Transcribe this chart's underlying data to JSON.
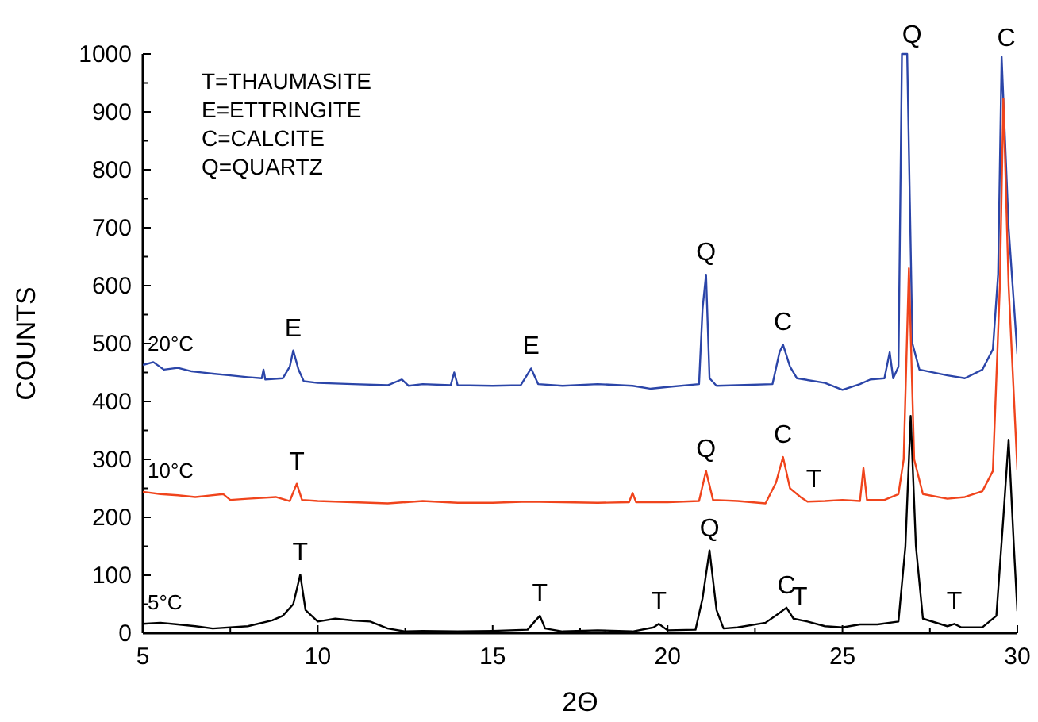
{
  "chart_data": {
    "type": "line",
    "xlabel": "2Θ",
    "ylabel": "COUNTS",
    "xlim": [
      5,
      30
    ],
    "ylim": [
      0,
      1000
    ],
    "xticks": [
      5,
      {
        "value": 7.5,
        "label": null
      },
      10,
      {
        "value": 12.5,
        "label": null
      },
      15,
      {
        "value": 17.5,
        "label": null
      },
      20,
      {
        "value": 22.5,
        "label": null
      },
      25,
      {
        "value": 27.5,
        "label": null
      },
      30
    ],
    "yticks": [
      0,
      {
        "value": 50,
        "label": null
      },
      100,
      {
        "value": 150,
        "label": null
      },
      200,
      {
        "value": 250,
        "label": null
      },
      300,
      {
        "value": 350,
        "label": null
      },
      400,
      {
        "value": 450,
        "label": null
      },
      500,
      {
        "value": 550,
        "label": null
      },
      600,
      {
        "value": 650,
        "label": null
      },
      700,
      {
        "value": 750,
        "label": null
      },
      800,
      {
        "value": 850,
        "label": null
      },
      900,
      {
        "value": 950,
        "label": null
      },
      1000
    ],
    "grid": false,
    "legend": false,
    "marker": "none",
    "line_style": "solid",
    "series": [
      {
        "name": "20°C",
        "color": "#2b45a8",
        "x": [
          5,
          5.3,
          5.6,
          6,
          6.4,
          7,
          7.5,
          8,
          8.4,
          8.45,
          8.5,
          9.0,
          9.2,
          9.3,
          9.45,
          9.6,
          10,
          11,
          12,
          12.4,
          12.6,
          13,
          13.8,
          13.9,
          14,
          15,
          15.8,
          16.1,
          16.3,
          17,
          18,
          19,
          19.5,
          20,
          20.9,
          21.0,
          21.1,
          21.2,
          21.4,
          22,
          23,
          23.2,
          23.3,
          23.5,
          23.7,
          24.5,
          25,
          25.5,
          25.8,
          26.2,
          26.35,
          26.45,
          26.6,
          26.7,
          26.85,
          27.0,
          27.2,
          28,
          28.5,
          29,
          29.3,
          29.45,
          29.55,
          29.75,
          30
        ],
        "values": [
          463,
          468,
          455,
          458,
          452,
          448,
          445,
          442,
          440,
          455,
          438,
          440,
          460,
          488,
          455,
          435,
          432,
          430,
          428,
          438,
          427,
          430,
          428,
          450,
          428,
          427,
          428,
          457,
          430,
          427,
          430,
          427,
          422,
          425,
          430,
          560,
          619,
          440,
          427,
          428,
          430,
          485,
          498,
          460,
          440,
          432,
          420,
          430,
          438,
          440,
          485,
          440,
          460,
          1000,
          1000,
          500,
          455,
          445,
          440,
          455,
          490,
          620,
          995,
          700,
          482
        ]
      },
      {
        "name": "10°C",
        "color": "#f0441c",
        "x": [
          5,
          5.5,
          6,
          6.5,
          7.3,
          7.5,
          8,
          8.8,
          9.2,
          9.4,
          9.55,
          10,
          11,
          12,
          13,
          14,
          15,
          16,
          17,
          18,
          18.9,
          19.0,
          19.1,
          20,
          20.9,
          21.1,
          21.3,
          22,
          22.8,
          23.1,
          23.3,
          23.5,
          23.8,
          24,
          24.5,
          25,
          25.5,
          25.6,
          25.7,
          26.2,
          26.6,
          26.75,
          26.9,
          27.05,
          27.3,
          28,
          28.5,
          29,
          29.3,
          29.5,
          29.6,
          29.75,
          30
        ],
        "values": [
          244,
          240,
          238,
          235,
          240,
          230,
          232,
          235,
          228,
          258,
          230,
          228,
          226,
          224,
          228,
          225,
          225,
          227,
          226,
          225,
          226,
          242,
          226,
          226,
          228,
          280,
          230,
          228,
          224,
          260,
          304,
          250,
          235,
          227,
          228,
          230,
          228,
          285,
          230,
          230,
          240,
          300,
          630,
          300,
          240,
          232,
          235,
          245,
          280,
          600,
          923,
          600,
          282
        ]
      },
      {
        "name": "5°C",
        "color": "#000000",
        "x": [
          5,
          5.5,
          6,
          6.5,
          7,
          8,
          8.7,
          9.0,
          9.3,
          9.5,
          9.65,
          10,
          10.5,
          11,
          11.5,
          12,
          12.5,
          13,
          14,
          15,
          16,
          16.2,
          16.35,
          16.5,
          17,
          18,
          19,
          19.6,
          19.75,
          20,
          20.8,
          21.0,
          21.2,
          21.4,
          21.6,
          22,
          22.8,
          23.2,
          23.4,
          23.6,
          24,
          24.5,
          25,
          25.5,
          26,
          26.6,
          26.8,
          26.95,
          27.1,
          27.3,
          28,
          28.2,
          28.4,
          29,
          29.4,
          29.6,
          29.75,
          29.9,
          30
        ],
        "values": [
          16,
          18,
          15,
          12,
          8,
          12,
          22,
          30,
          50,
          101,
          40,
          20,
          25,
          22,
          20,
          8,
          3,
          4,
          3,
          4,
          6,
          20,
          30,
          8,
          3,
          5,
          3,
          10,
          16,
          5,
          6,
          60,
          143,
          40,
          8,
          10,
          18,
          35,
          44,
          25,
          20,
          12,
          10,
          15,
          15,
          20,
          150,
          375,
          150,
          25,
          12,
          16,
          10,
          10,
          30,
          200,
          334,
          150,
          38
        ]
      }
    ],
    "annotations": [
      "T=THAUMASITE",
      "E=ETTRINGITE",
      "C=CALCITE",
      "Q=QUARTZ",
      {
        "text": "Q",
        "x": 26.85,
        "y": 1000
      },
      {
        "text": "C",
        "x": 29.55,
        "y": 995
      },
      {
        "text": "Q",
        "x": 21.1,
        "y": 619
      },
      {
        "text": "C",
        "x": 23.3,
        "y": 498
      },
      {
        "text": "E",
        "x": 9.3,
        "y": 488
      },
      {
        "text": "E",
        "x": 16.1,
        "y": 457
      },
      {
        "text": "T",
        "x": 9.4,
        "y": 258
      },
      {
        "text": "Q",
        "x": 21.1,
        "y": 280
      },
      {
        "text": "C",
        "x": 23.3,
        "y": 304
      },
      {
        "text": "T",
        "x": 24,
        "y": 227
      },
      {
        "text": "T",
        "x": 9.5,
        "y": 101
      },
      {
        "text": "T",
        "x": 16.35,
        "y": 30
      },
      {
        "text": "T",
        "x": 19.75,
        "y": 16
      },
      {
        "text": "Q",
        "x": 21.2,
        "y": 143
      },
      {
        "text": "C",
        "x": 23.4,
        "y": 44
      },
      {
        "text": "T",
        "x": 23.6,
        "y": 25
      },
      {
        "text": "T",
        "x": 28.2,
        "y": 16
      }
    ]
  }
}
